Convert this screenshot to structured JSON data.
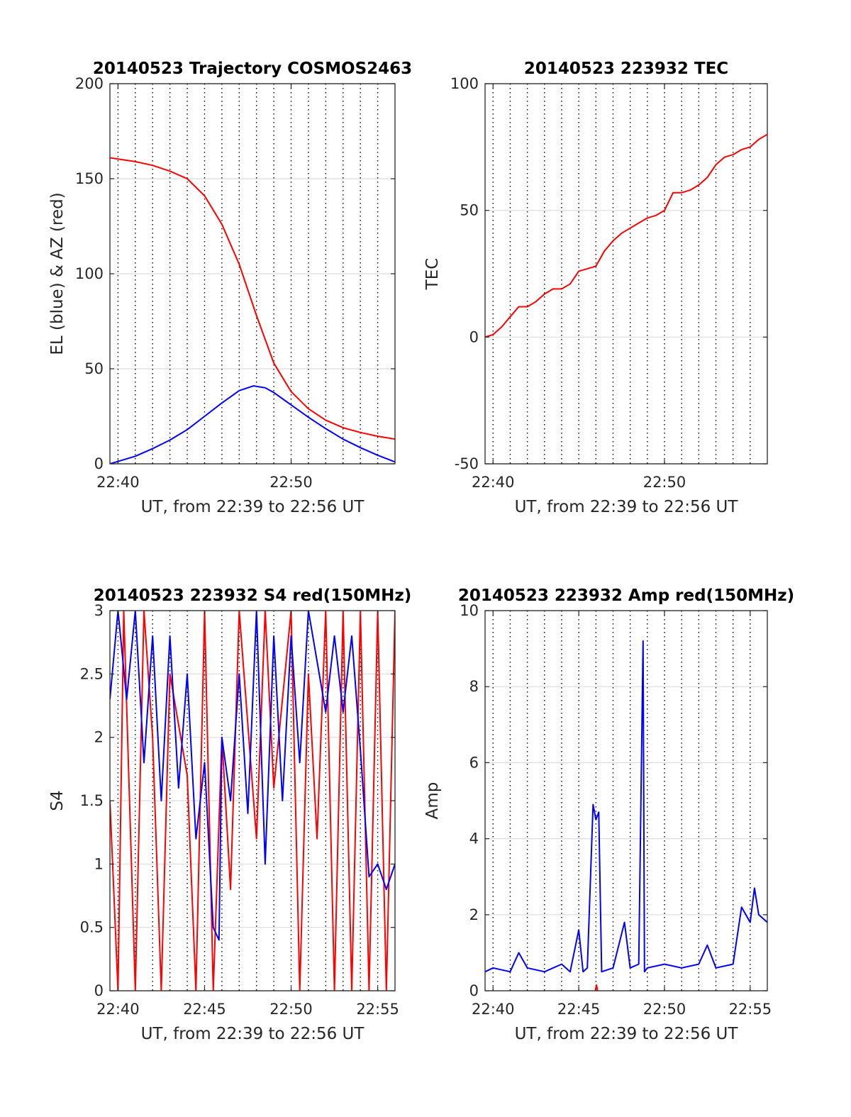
{
  "chart_data": [
    {
      "id": "traj",
      "type": "line",
      "title": "20140523 Trajectory COSMOS2463",
      "xlabel": "UT, from 22:39 to 22:56 UT",
      "ylabel": "EL (blue) & AZ (red)",
      "xlim": [
        "22:39:32",
        "22:56:00"
      ],
      "ylim": [
        0,
        200
      ],
      "xticks": [
        {
          "t": "22:40:00",
          "label": "22:40"
        },
        {
          "t": "22:50:00",
          "label": "22:50"
        }
      ],
      "yticks": [
        0,
        50,
        100,
        150,
        200
      ],
      "vlines_every_min": 1,
      "grid": "horizontal solid gray, vertical dotted black each minute",
      "series": [
        {
          "color": "#ff0000",
          "points": [
            [
              "22:39:32",
              161
            ],
            [
              "22:41",
              159
            ],
            [
              "22:42",
              157
            ],
            [
              "22:43",
              154
            ],
            [
              "22:44",
              150
            ],
            [
              "22:45",
              141
            ],
            [
              "22:46",
              126
            ],
            [
              "22:47",
              105
            ],
            [
              "22:48",
              78
            ],
            [
              "22:49",
              53
            ],
            [
              "22:50",
              38
            ],
            [
              "22:51",
              29
            ],
            [
              "22:52",
              23
            ],
            [
              "22:53",
              19
            ],
            [
              "22:54",
              16.5
            ],
            [
              "22:55",
              14.5
            ],
            [
              "22:56",
              13
            ]
          ]
        },
        {
          "color": "#0000ff",
          "points": [
            [
              "22:39:32",
              0
            ],
            [
              "22:41",
              4
            ],
            [
              "22:42",
              8
            ],
            [
              "22:43",
              12.5
            ],
            [
              "22:44",
              18
            ],
            [
              "22:45",
              25
            ],
            [
              "22:46",
              32
            ],
            [
              "22:47",
              38.5
            ],
            [
              "22:47:50",
              41
            ],
            [
              "22:48:30",
              40
            ],
            [
              "22:49",
              37.5
            ],
            [
              "22:50",
              31
            ],
            [
              "22:51",
              24.5
            ],
            [
              "22:52",
              18.5
            ],
            [
              "22:53",
              13
            ],
            [
              "22:54",
              8.5
            ],
            [
              "22:55",
              4.5
            ],
            [
              "22:56",
              1
            ]
          ]
        }
      ]
    },
    {
      "id": "tec",
      "type": "line",
      "title": "20140523 223932 TEC",
      "xlabel": "UT, from 22:39 to 22:56 UT",
      "ylabel": "TEC",
      "xlim": [
        "22:39:32",
        "22:56:00"
      ],
      "ylim": [
        -50,
        100
      ],
      "xticks": [
        {
          "t": "22:40:00",
          "label": "22:40"
        },
        {
          "t": "22:50:00",
          "label": "22:50"
        }
      ],
      "yticks": [
        -50,
        0,
        50,
        100
      ],
      "vlines_every_min": 1,
      "grid": "horizontal solid gray, vertical dotted black each minute",
      "series": [
        {
          "color": "#ff0000",
          "points": [
            [
              "22:39:32",
              0
            ],
            [
              "22:40",
              1
            ],
            [
              "22:40:30",
              4
            ],
            [
              "22:41",
              8
            ],
            [
              "22:41:30",
              12
            ],
            [
              "22:42",
              12
            ],
            [
              "22:42:30",
              14
            ],
            [
              "22:43",
              17
            ],
            [
              "22:43:30",
              19
            ],
            [
              "22:44",
              19
            ],
            [
              "22:44:30",
              21
            ],
            [
              "22:45",
              26
            ],
            [
              "22:45:30",
              27
            ],
            [
              "22:46",
              28
            ],
            [
              "22:46:30",
              34
            ],
            [
              "22:47",
              38
            ],
            [
              "22:47:30",
              41
            ],
            [
              "22:48",
              43
            ],
            [
              "22:48:30",
              45
            ],
            [
              "22:49",
              47
            ],
            [
              "22:49:30",
              48
            ],
            [
              "22:50",
              50
            ],
            [
              "22:50:30",
              57
            ],
            [
              "22:51",
              57
            ],
            [
              "22:51:30",
              58
            ],
            [
              "22:52",
              60
            ],
            [
              "22:52:30",
              63
            ],
            [
              "22:53",
              68
            ],
            [
              "22:53:30",
              71
            ],
            [
              "22:54",
              72
            ],
            [
              "22:54:30",
              74
            ],
            [
              "22:55",
              75
            ],
            [
              "22:55:30",
              78
            ],
            [
              "22:56",
              80
            ]
          ]
        }
      ]
    },
    {
      "id": "s4",
      "type": "line",
      "title": "20140523 223932 S4 red(150MHz)",
      "xlabel": "UT, from 22:39 to 22:56 UT",
      "ylabel": "S4",
      "xlim": [
        "22:39:32",
        "22:56:00"
      ],
      "ylim": [
        0,
        3
      ],
      "xticks": [
        {
          "t": "22:40:00",
          "label": "22:40"
        },
        {
          "t": "22:45:00",
          "label": "22:45"
        },
        {
          "t": "22:50:00",
          "label": "22:50"
        },
        {
          "t": "22:55:00",
          "label": "22:55"
        }
      ],
      "yticks": [
        0,
        0.5,
        1,
        1.5,
        2,
        2.5,
        3
      ],
      "vlines_every_min": 1,
      "grid": "horizontal solid gray, vertical dotted black each minute",
      "series": [
        {
          "color": "#ff0000",
          "points": [
            [
              "22:39:32",
              1.5
            ],
            [
              "22:40",
              0
            ],
            [
              "22:40:20",
              3
            ],
            [
              "22:41",
              0
            ],
            [
              "22:41:30",
              3
            ],
            [
              "22:42",
              2
            ],
            [
              "22:42:30",
              0
            ],
            [
              "22:43",
              2.5
            ],
            [
              "22:44",
              1.7
            ],
            [
              "22:44:30",
              0
            ],
            [
              "22:45",
              3
            ],
            [
              "22:45:30",
              0
            ],
            [
              "22:46",
              2
            ],
            [
              "22:46:30",
              0.8
            ],
            [
              "22:47",
              3
            ],
            [
              "22:48",
              1.2
            ],
            [
              "22:48:30",
              3
            ],
            [
              "22:49",
              1.6
            ],
            [
              "22:50",
              3
            ],
            [
              "22:50:30",
              0
            ],
            [
              "22:51",
              2.5
            ],
            [
              "22:51:30",
              1.2
            ],
            [
              "22:52",
              3
            ],
            [
              "22:52:30",
              0
            ],
            [
              "22:53",
              3
            ],
            [
              "22:53:30",
              0
            ],
            [
              "22:54",
              3
            ],
            [
              "22:54:30",
              0
            ],
            [
              "22:55",
              3
            ],
            [
              "22:55:30",
              0
            ],
            [
              "22:56",
              3
            ]
          ]
        },
        {
          "color": "#0000ff",
          "points": [
            [
              "22:39:32",
              2.3
            ],
            [
              "22:40",
              3
            ],
            [
              "22:40:30",
              2.3
            ],
            [
              "22:41",
              3
            ],
            [
              "22:41:30",
              1.8
            ],
            [
              "22:42",
              2.8
            ],
            [
              "22:42:30",
              1.5
            ],
            [
              "22:43",
              2.8
            ],
            [
              "22:43:30",
              1.6
            ],
            [
              "22:44",
              2.5
            ],
            [
              "22:44:30",
              1.2
            ],
            [
              "22:45",
              1.8
            ],
            [
              "22:45:30",
              0.5
            ],
            [
              "22:45:50",
              0.4
            ],
            [
              "22:46",
              2
            ],
            [
              "22:46:30",
              1.5
            ],
            [
              "22:47",
              2.5
            ],
            [
              "22:47:30",
              1.4
            ],
            [
              "22:48",
              3
            ],
            [
              "22:48:30",
              1
            ],
            [
              "22:49",
              2.8
            ],
            [
              "22:49:30",
              1.5
            ],
            [
              "22:50",
              2.8
            ],
            [
              "22:50:30",
              1.8
            ],
            [
              "22:51",
              3
            ],
            [
              "22:52",
              2.2
            ],
            [
              "22:52:30",
              2.8
            ],
            [
              "22:53",
              2.2
            ],
            [
              "22:53:30",
              2.8
            ],
            [
              "22:54",
              1.9
            ],
            [
              "22:54:30",
              0.9
            ],
            [
              "22:55",
              1
            ],
            [
              "22:55:30",
              0.8
            ],
            [
              "22:56",
              1
            ]
          ]
        }
      ]
    },
    {
      "id": "amp",
      "type": "line",
      "title": "20140523 223932 Amp red(150MHz)",
      "xlabel": "UT, from 22:39 to 22:56 UT",
      "ylabel": "Amp",
      "xlim": [
        "22:39:32",
        "22:56:00"
      ],
      "ylim": [
        0,
        10
      ],
      "xticks": [
        {
          "t": "22:40:00",
          "label": "22:40"
        },
        {
          "t": "22:45:00",
          "label": "22:45"
        },
        {
          "t": "22:50:00",
          "label": "22:50"
        },
        {
          "t": "22:55:00",
          "label": "22:55"
        }
      ],
      "yticks": [
        0,
        2,
        4,
        6,
        8,
        10
      ],
      "vlines_every_min": 1,
      "grid": "horizontal solid gray, vertical dotted black each minute",
      "series": [
        {
          "color": "#ff0000",
          "points": [
            [
              "22:45:58",
              0
            ],
            [
              "22:46:02",
              0.15
            ],
            [
              "22:46:06",
              0
            ]
          ]
        },
        {
          "color": "#0000ff",
          "points": [
            [
              "22:39:32",
              0.5
            ],
            [
              "22:40",
              0.6
            ],
            [
              "22:41",
              0.5
            ],
            [
              "22:41:30",
              1.0
            ],
            [
              "22:42",
              0.6
            ],
            [
              "22:43",
              0.5
            ],
            [
              "22:44",
              0.7
            ],
            [
              "22:44:30",
              0.5
            ],
            [
              "22:45",
              1.6
            ],
            [
              "22:45:15",
              0.5
            ],
            [
              "22:45:30",
              0.6
            ],
            [
              "22:45:50",
              4.9
            ],
            [
              "22:46",
              4.5
            ],
            [
              "22:46:10",
              4.7
            ],
            [
              "22:46:20",
              0.5
            ],
            [
              "22:47",
              0.6
            ],
            [
              "22:47:40",
              1.8
            ],
            [
              "22:48",
              0.6
            ],
            [
              "22:48:30",
              0.7
            ],
            [
              "22:48:45",
              9.2
            ],
            [
              "22:48:50",
              0.5
            ],
            [
              "22:49",
              0.6
            ],
            [
              "22:50",
              0.7
            ],
            [
              "22:51",
              0.6
            ],
            [
              "22:52",
              0.7
            ],
            [
              "22:52:30",
              1.2
            ],
            [
              "22:53",
              0.6
            ],
            [
              "22:54",
              0.7
            ],
            [
              "22:54:30",
              2.2
            ],
            [
              "22:55",
              1.8
            ],
            [
              "22:55:15",
              2.7
            ],
            [
              "22:55:30",
              2.0
            ],
            [
              "22:56",
              1.8
            ]
          ]
        }
      ]
    }
  ]
}
